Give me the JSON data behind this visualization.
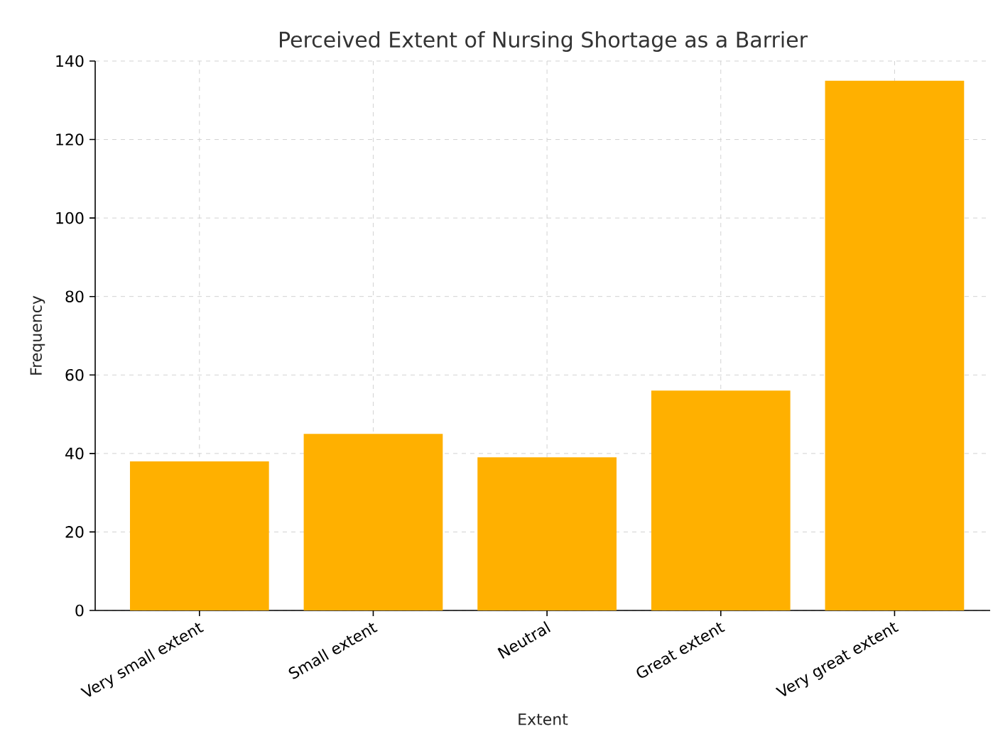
{
  "chart_data": {
    "type": "bar",
    "title": "Perceived Extent of Nursing Shortage as a Barrier",
    "xlabel": "Extent",
    "ylabel": "Frequency",
    "categories": [
      "Very small extent",
      "Small extent",
      "Neutral",
      "Great extent",
      "Very great extent"
    ],
    "values": [
      38,
      45,
      39,
      56,
      135
    ],
    "color": "#ffb000",
    "ylim": [
      0,
      140
    ],
    "yticks": [
      0,
      20,
      40,
      60,
      80,
      100,
      120,
      140
    ],
    "grid": true
  }
}
